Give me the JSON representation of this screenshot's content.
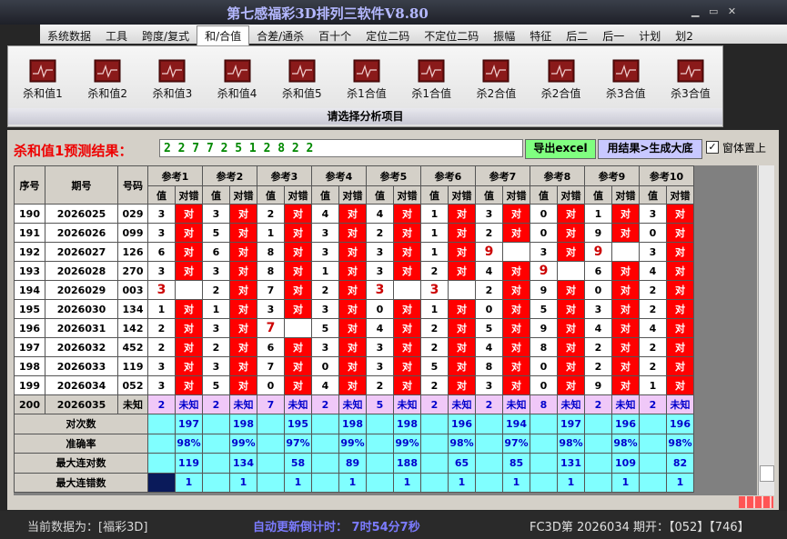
{
  "title": "第七感福彩3D排列三软件V8.80",
  "menu": [
    "系统数据",
    "工具",
    "跨度/复式",
    "和/合值",
    "合差/通杀",
    "百十个",
    "定位二码",
    "不定位二码",
    "振幅",
    "特征",
    "后二",
    "后一",
    "计划",
    "划2"
  ],
  "toolbar": {
    "buttons": [
      "杀和值1",
      "杀和值2",
      "杀和值3",
      "杀和值4",
      "杀和值5",
      "杀1合值",
      "杀1合值",
      "杀2合值",
      "杀2合值",
      "杀3合值",
      "杀3合值"
    ],
    "caption": "请选择分析项目"
  },
  "prediction": {
    "label": "杀和值1预测结果：",
    "result": "2 2 7 7 2 5 1 2 8 2 2",
    "export_button": "导出excel",
    "generate_button": "用结果>生成大底",
    "topmost_checkbox": "窗体置上"
  },
  "table": {
    "columns": [
      "序号",
      "期号",
      "号码"
    ],
    "groups": [
      "参考1",
      "参考2",
      "参考3",
      "参考4",
      "参考5",
      "参考6",
      "参考7",
      "参考8",
      "参考9",
      "参考10"
    ],
    "subheaders": [
      "值",
      "对错"
    ],
    "rows": [
      [
        "190",
        "2026025",
        "029",
        "3",
        "对",
        "3",
        "对",
        "2",
        "对",
        "4",
        "对",
        "4",
        "对",
        "1",
        "对",
        "3",
        "对",
        "0",
        "对",
        "1",
        "对",
        "3",
        "对"
      ],
      [
        "191",
        "2026026",
        "099",
        "3",
        "对",
        "5",
        "对",
        "1",
        "对",
        "3",
        "对",
        "2",
        "对",
        "1",
        "对",
        "2",
        "对",
        "0",
        "对",
        "9",
        "对",
        "0",
        "对"
      ],
      [
        "192",
        "2026027",
        "126",
        "6",
        "对",
        "6",
        "对",
        "8",
        "对",
        "3",
        "对",
        "3",
        "对",
        "1",
        "对",
        "9",
        null,
        "3",
        "对",
        "9",
        null,
        "3",
        "对"
      ],
      [
        "193",
        "2026028",
        "270",
        "3",
        "对",
        "3",
        "对",
        "8",
        "对",
        "1",
        "对",
        "3",
        "对",
        "2",
        "对",
        "4",
        "对",
        "9",
        null,
        "6",
        "对",
        "4",
        "对"
      ],
      [
        "194",
        "2026029",
        "003",
        "3",
        null,
        "2",
        "对",
        "7",
        "对",
        "2",
        "对",
        "3",
        null,
        "3",
        null,
        "2",
        "对",
        "9",
        "对",
        "0",
        "对",
        "2",
        "对"
      ],
      [
        "195",
        "2026030",
        "134",
        "1",
        "对",
        "1",
        "对",
        "3",
        "对",
        "3",
        "对",
        "0",
        "对",
        "1",
        "对",
        "0",
        "对",
        "5",
        "对",
        "3",
        "对",
        "2",
        "对"
      ],
      [
        "196",
        "2026031",
        "142",
        "2",
        "对",
        "3",
        "对",
        "7",
        null,
        "5",
        "对",
        "4",
        "对",
        "2",
        "对",
        "5",
        "对",
        "9",
        "对",
        "4",
        "对",
        "4",
        "对"
      ],
      [
        "197",
        "2026032",
        "452",
        "2",
        "对",
        "2",
        "对",
        "6",
        "对",
        "3",
        "对",
        "3",
        "对",
        "2",
        "对",
        "4",
        "对",
        "8",
        "对",
        "2",
        "对",
        "2",
        "对"
      ],
      [
        "198",
        "2026033",
        "119",
        "3",
        "对",
        "3",
        "对",
        "7",
        "对",
        "0",
        "对",
        "3",
        "对",
        "5",
        "对",
        "8",
        "对",
        "0",
        "对",
        "2",
        "对",
        "2",
        "对"
      ],
      [
        "199",
        "2026034",
        "052",
        "3",
        "对",
        "5",
        "对",
        "0",
        "对",
        "4",
        "对",
        "2",
        "对",
        "2",
        "对",
        "3",
        "对",
        "0",
        "对",
        "9",
        "对",
        "1",
        "对"
      ],
      [
        "200",
        "2026035",
        "未知",
        "2",
        "未知",
        "2",
        "未知",
        "7",
        "未知",
        "2",
        "未知",
        "5",
        "未知",
        "2",
        "未知",
        "2",
        "未知",
        "8",
        "未知",
        "2",
        "未知",
        "2",
        "未知"
      ]
    ],
    "summary": [
      {
        "label": "对次数",
        "values": [
          "197",
          "198",
          "195",
          "198",
          "198",
          "196",
          "194",
          "197",
          "196",
          "196"
        ]
      },
      {
        "label": "准确率",
        "values": [
          "98%",
          "99%",
          "97%",
          "99%",
          "99%",
          "98%",
          "97%",
          "98%",
          "98%",
          "98%"
        ]
      },
      {
        "label": "最大连对数",
        "values": [
          "119",
          "134",
          "58",
          "89",
          "188",
          "65",
          "85",
          "131",
          "109",
          "82"
        ]
      },
      {
        "label": "最大连错数",
        "values": [
          "1",
          "1",
          "1",
          "1",
          "1",
          "1",
          "1",
          "1",
          "1",
          "1"
        ]
      }
    ]
  },
  "status": {
    "data_source": "当前数据为：[福彩3D]",
    "countdown": "自动更新倒计时： 7时54分7秒",
    "latest": "FC3D第 2026034 期开：【052】【746】"
  }
}
